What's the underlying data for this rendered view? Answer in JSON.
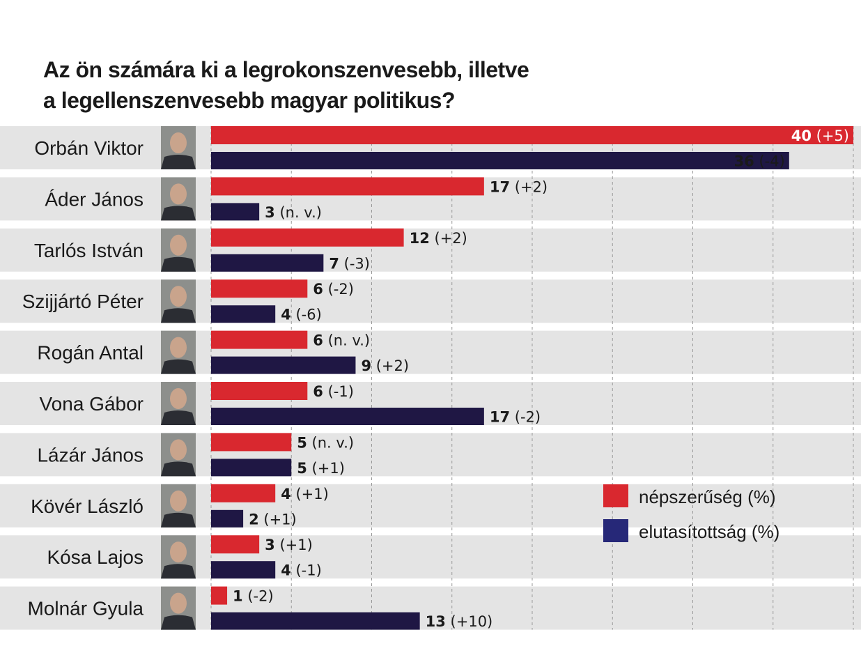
{
  "chart_data": {
    "type": "bar",
    "orientation": "horizontal",
    "title": "Az ön számára ki a legrokonszenvesebb, illetve a legellenszenvesebb magyar politikus?",
    "title_lines": [
      "Az ön számára ki a legrokonszenvesebb, illetve",
      "a legellenszenvesebb magyar politikus?"
    ],
    "categories": [
      "Orbán Viktor",
      "Áder János",
      "Tarlós István",
      "Szijjártó Péter",
      "Rogán Antal",
      "Vona Gábor",
      "Lázár János",
      "Kövér László",
      "Kósa Lajos",
      "Molnár Gyula"
    ],
    "series": [
      {
        "name": "népszerűség (%)",
        "color": "#d9282f",
        "values": [
          40,
          17,
          12,
          6,
          6,
          6,
          5,
          4,
          3,
          1
        ],
        "changes": [
          "(+5)",
          "(+2)",
          "(+2)",
          "(-2)",
          "(n. v.)",
          "(-1)",
          "(n. v.)",
          "(+1)",
          "(+1)",
          "(-2)"
        ]
      },
      {
        "name": "elutasítottság (%)",
        "color": "#1f1744",
        "legend_color": "#262878",
        "values": [
          36,
          3,
          7,
          4,
          9,
          17,
          5,
          2,
          4,
          13
        ],
        "changes": [
          "(-4)",
          "(n. v.)",
          "(-3)",
          "(-6)",
          "(+2)",
          "(-2)",
          "(+1)",
          "(+1)",
          "(-1)",
          "(+10)"
        ]
      }
    ],
    "xlim": [
      0,
      40
    ],
    "grid": true,
    "grid_step": 5,
    "legend_position": "lower-right",
    "row_background": "#e4e4e4",
    "photos": true
  }
}
